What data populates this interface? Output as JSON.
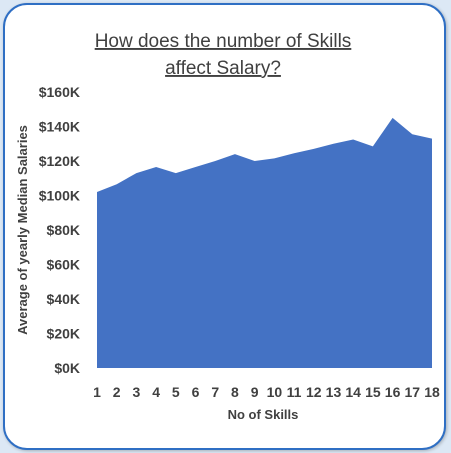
{
  "chart_data": {
    "type": "area",
    "title_lines": [
      "How does the number of Skills",
      "affect Salary?"
    ],
    "xlabel": "No of Skills",
    "ylabel": "Average of yearly Median Salaries",
    "x": [
      1,
      2,
      3,
      4,
      5,
      6,
      7,
      8,
      9,
      10,
      11,
      12,
      13,
      14,
      15,
      16,
      17,
      18
    ],
    "values": [
      102000,
      106500,
      113000,
      116500,
      113000,
      116500,
      120000,
      124000,
      120000,
      121500,
      124500,
      127000,
      130000,
      132500,
      128500,
      145000,
      135500,
      133000
    ],
    "yticks": [
      "$0K",
      "$20K",
      "$40K",
      "$60K",
      "$80K",
      "$100K",
      "$120K",
      "$140K",
      "$160K"
    ],
    "ylim": [
      0,
      160000
    ],
    "grid": false,
    "legend": "none",
    "fill_color": "#4472c4"
  }
}
